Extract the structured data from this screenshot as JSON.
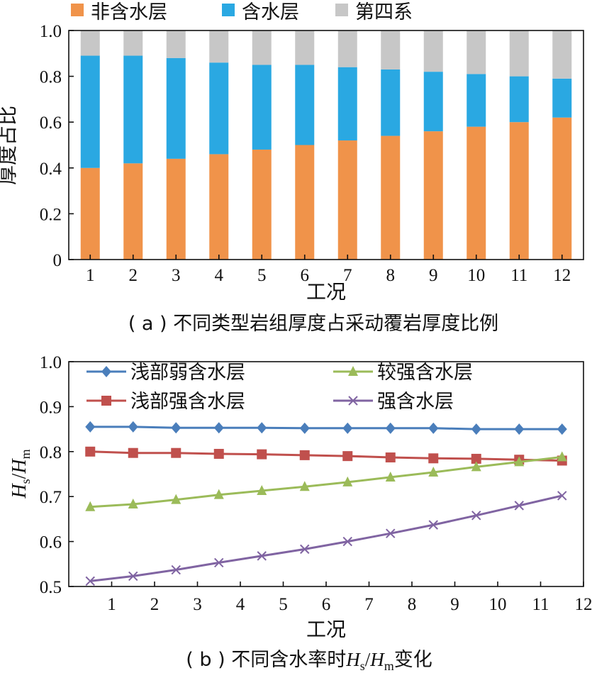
{
  "chart_data": [
    {
      "type": "bar",
      "stacked": true,
      "caption": "( a ) 不同类型岩组厚度占采动覆岩厚度比例",
      "xlabel": "工况",
      "ylabel": "厚度占比",
      "ylim": [
        0,
        1.0
      ],
      "yticks": [
        "0",
        "0.2",
        "0.4",
        "0.6",
        "0.8",
        "1.0"
      ],
      "categories": [
        "1",
        "2",
        "3",
        "4",
        "5",
        "6",
        "7",
        "8",
        "9",
        "10",
        "11",
        "12"
      ],
      "legend_position": "top",
      "series": [
        {
          "name": "非含水层",
          "color": "#f0934a",
          "values": [
            0.4,
            0.42,
            0.44,
            0.46,
            0.48,
            0.5,
            0.52,
            0.54,
            0.56,
            0.58,
            0.6,
            0.62
          ]
        },
        {
          "name": "含水层",
          "color": "#2aa8e2",
          "values": [
            0.49,
            0.47,
            0.44,
            0.4,
            0.37,
            0.35,
            0.32,
            0.29,
            0.26,
            0.23,
            0.2,
            0.17
          ]
        },
        {
          "name": "第四系",
          "color": "#c7c7c7",
          "values": [
            0.11,
            0.11,
            0.12,
            0.14,
            0.15,
            0.15,
            0.16,
            0.17,
            0.18,
            0.19,
            0.2,
            0.21
          ]
        }
      ]
    },
    {
      "type": "line",
      "caption_prefix": "( b ) 不同含水率时",
      "caption_suffix": "变化",
      "xlabel": "工况",
      "ylabel_var": "H",
      "ylabel_sub1": "s",
      "ylabel_slash": "/",
      "ylabel_sub2": "m",
      "xlim": [
        0,
        12
      ],
      "ylim": [
        0.5,
        1.0
      ],
      "xticks": [
        "1",
        "2",
        "3",
        "4",
        "5",
        "6",
        "7",
        "8",
        "9",
        "10",
        "11",
        "12"
      ],
      "yticks": [
        "0.5",
        "0.6",
        "0.7",
        "0.8",
        "0.9",
        "1.0"
      ],
      "x": [
        0.5,
        1.5,
        2.5,
        3.5,
        4.5,
        5.5,
        6.5,
        7.5,
        8.5,
        9.5,
        10.5,
        11.5
      ],
      "legend_position": "top",
      "series": [
        {
          "name": "浅部弱含水层",
          "color": "#4a7ebb",
          "marker": "diamond",
          "values": [
            0.855,
            0.855,
            0.853,
            0.853,
            0.853,
            0.852,
            0.852,
            0.852,
            0.852,
            0.85,
            0.85,
            0.85
          ]
        },
        {
          "name": "浅部强含水层",
          "color": "#c0504d",
          "marker": "square",
          "values": [
            0.8,
            0.797,
            0.797,
            0.795,
            0.794,
            0.792,
            0.79,
            0.787,
            0.785,
            0.784,
            0.782,
            0.78
          ]
        },
        {
          "name": "较强含水层",
          "color": "#9bbb59",
          "marker": "triangle",
          "values": [
            0.677,
            0.683,
            0.693,
            0.704,
            0.713,
            0.722,
            0.732,
            0.743,
            0.754,
            0.766,
            0.777,
            0.788
          ]
        },
        {
          "name": "强含水层",
          "color": "#8064a2",
          "marker": "x",
          "values": [
            0.512,
            0.523,
            0.537,
            0.553,
            0.568,
            0.583,
            0.6,
            0.618,
            0.637,
            0.658,
            0.68,
            0.702
          ]
        }
      ]
    }
  ]
}
